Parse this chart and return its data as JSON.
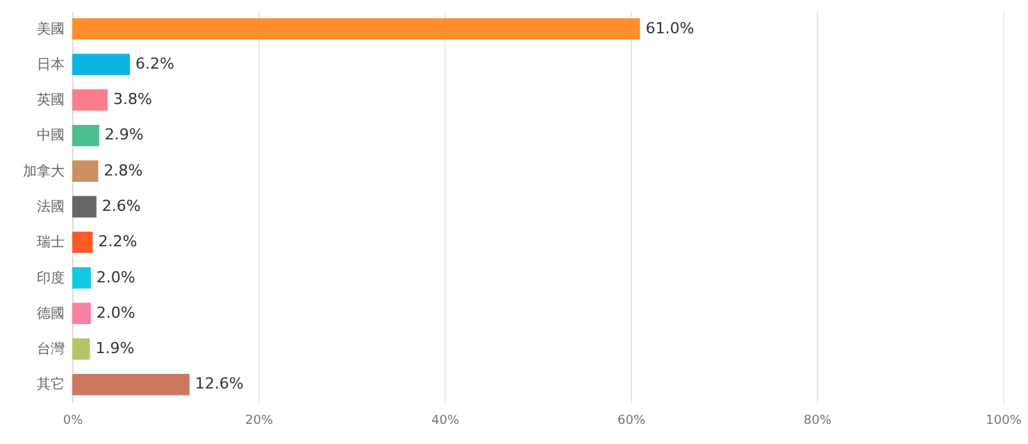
{
  "chart_data": {
    "type": "bar",
    "orientation": "horizontal",
    "categories": [
      "美國",
      "日本",
      "英國",
      "中國",
      "加拿大",
      "法國",
      "瑞士",
      "印度",
      "德國",
      "台灣",
      "其它"
    ],
    "values": [
      61.0,
      6.2,
      3.8,
      2.9,
      2.8,
      2.6,
      2.2,
      2.0,
      2.0,
      1.9,
      12.6
    ],
    "colors": [
      "#fd8f31",
      "#0cb4e4",
      "#fb7d8b",
      "#4cc08f",
      "#cd8f5f",
      "#666666",
      "#fe5a2a",
      "#11c8e5",
      "#f780a3",
      "#b4c567",
      "#cd775f"
    ],
    "value_labels": [
      "61.0%",
      "6.2%",
      "3.8%",
      "2.9%",
      "2.8%",
      "2.6%",
      "2.2%",
      "2.0%",
      "2.0%",
      "1.9%",
      "12.6%"
    ],
    "xlim": [
      0,
      100
    ],
    "xticks": [
      {
        "value": 0,
        "label": "0%"
      },
      {
        "value": 20,
        "label": "20%"
      },
      {
        "value": 40,
        "label": "40%"
      },
      {
        "value": 60,
        "label": "60%"
      },
      {
        "value": 80,
        "label": "80%"
      },
      {
        "value": 100,
        "label": "100%"
      }
    ],
    "grid": "x"
  }
}
